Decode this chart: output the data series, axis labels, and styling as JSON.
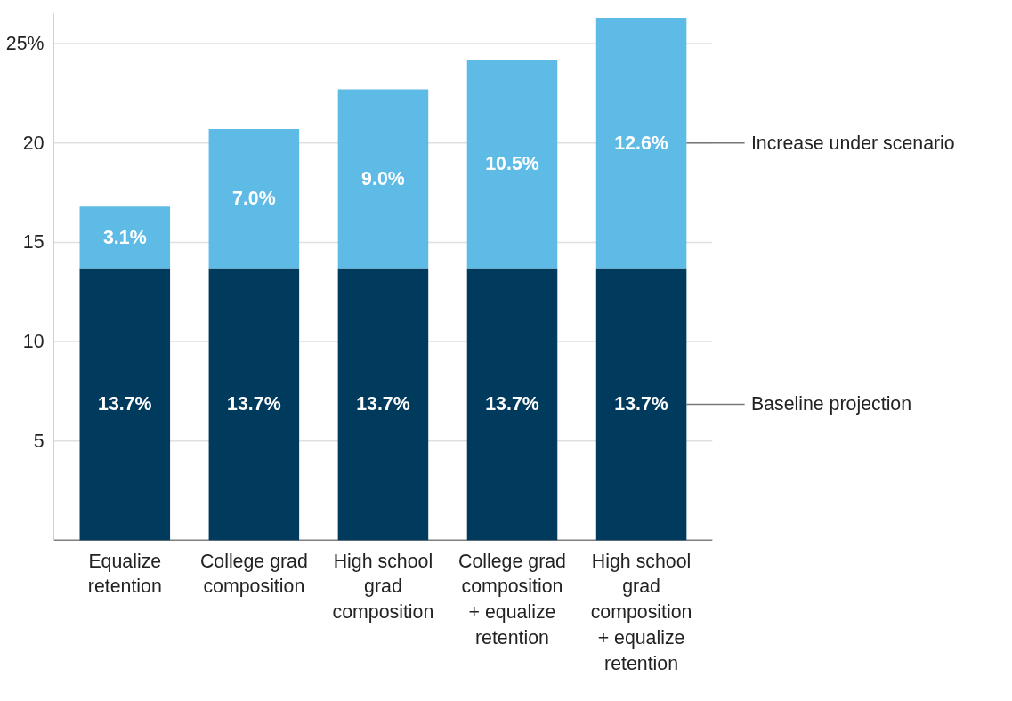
{
  "chart_data": {
    "type": "bar",
    "stacked": true,
    "categories": [
      "Equalize retention",
      "College grad composition",
      "High school grad composition",
      "College grad composition + equalize retention",
      "High school grad composition + equalize retention"
    ],
    "series": [
      {
        "name": "Baseline projection",
        "color": "#003a5d",
        "values": [
          13.7,
          13.7,
          13.7,
          13.7,
          13.7
        ],
        "value_labels": [
          "13.7%",
          "13.7%",
          "13.7%",
          "13.7%",
          "13.7%"
        ]
      },
      {
        "name": "Increase under scenario",
        "color": "#5ebbe6",
        "values": [
          3.1,
          7.0,
          9.0,
          10.5,
          12.6
        ],
        "value_labels": [
          "3.1%",
          "7.0%",
          "9.0%",
          "10.5%",
          "12.6%"
        ]
      }
    ],
    "ylim": [
      0,
      26.5
    ],
    "yticks": [
      5,
      10,
      15,
      20,
      {
        "value": 25,
        "label": "25%"
      }
    ],
    "grid": "y"
  }
}
